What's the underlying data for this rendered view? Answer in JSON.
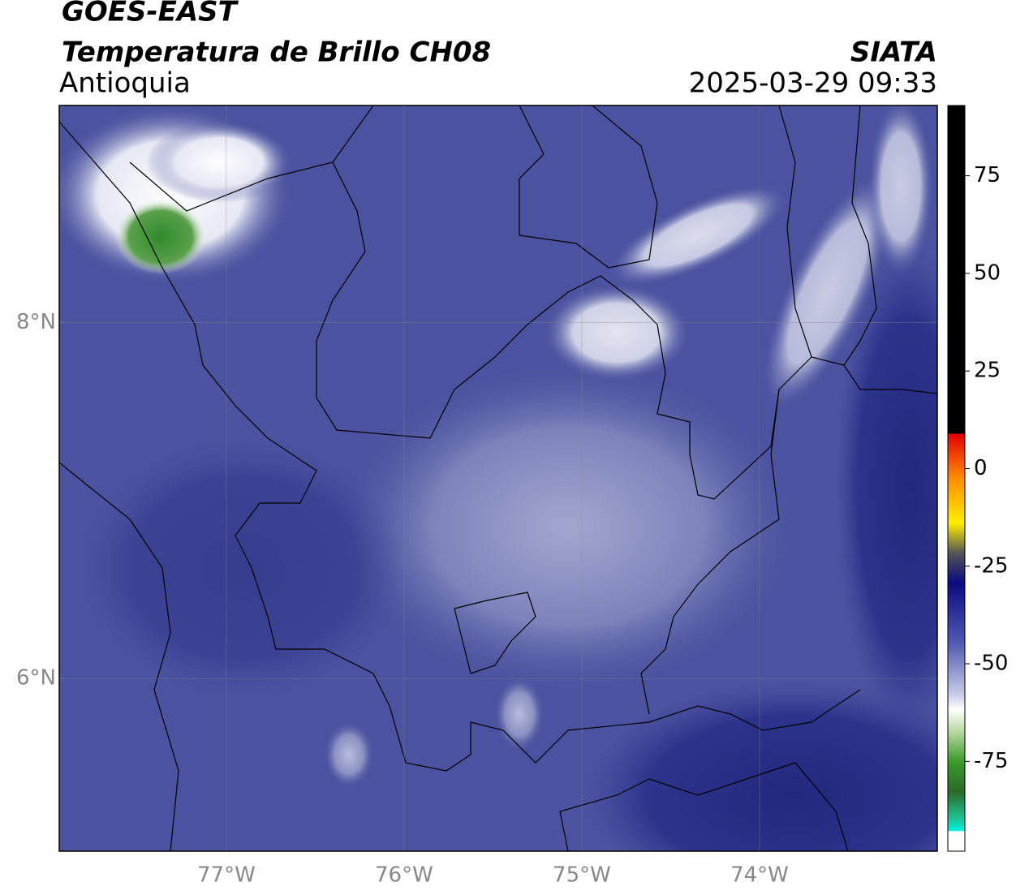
{
  "header": {
    "title": "GOES-EAST",
    "subtitle": "Temperatura de Brillo CH08",
    "region": "Antioquia",
    "source": "SIATA",
    "datetime": "2025-03-29 09:33"
  },
  "map": {
    "xlim": [
      -77.94,
      -73.0
    ],
    "ylim": [
      5.03,
      9.22
    ],
    "xticks": [
      {
        "value": -77,
        "label": "77°W"
      },
      {
        "value": -76,
        "label": "76°W"
      },
      {
        "value": -75,
        "label": "75°W"
      },
      {
        "value": -74,
        "label": "74°W"
      }
    ],
    "yticks": [
      {
        "value": 8,
        "label": "8°N"
      },
      {
        "value": 6,
        "label": "6°N"
      }
    ]
  },
  "colorbar": {
    "lim": [
      -98,
      93
    ],
    "ticks": [
      75,
      50,
      25,
      0,
      -25,
      -50,
      -75
    ]
  }
}
